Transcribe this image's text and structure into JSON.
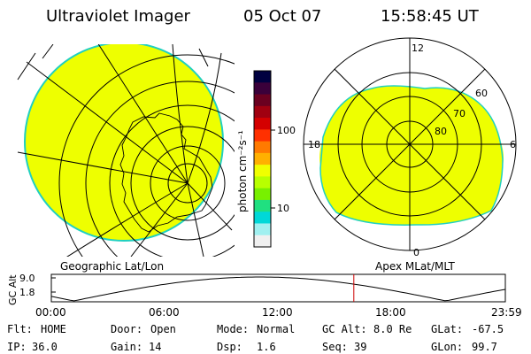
{
  "header": {
    "title": "Ultraviolet Imager",
    "date": "05 Oct 07",
    "time": "15:58:45 UT"
  },
  "colorbar": {
    "unit_label": "photon cm⁻²s⁻¹",
    "ticks": [
      "100",
      "10"
    ],
    "colors": [
      "#000040",
      "#3a003a",
      "#6a0020",
      "#a00010",
      "#d40000",
      "#ff3000",
      "#ff7a00",
      "#ffb000",
      "#f0ff00",
      "#b8ff00",
      "#78f000",
      "#20e080",
      "#00d8d8",
      "#a0f0f0",
      "#f0f0f0"
    ]
  },
  "left_map": {
    "caption": "Geographic Lat/Lon",
    "fill_color": "#eeff00"
  },
  "right_map": {
    "caption": "Apex MLat/MLT",
    "fill_color": "#eeff00",
    "mlt_labels": {
      "top": "12",
      "left": "18",
      "right": "6",
      "bottom": "0"
    },
    "lat_labels": [
      "60",
      "70",
      "80"
    ]
  },
  "altitude_plot": {
    "ylabel": "GC Alt",
    "yticks": [
      "9.0",
      "1.8"
    ],
    "xticks": [
      "00:00",
      "06:00",
      "12:00",
      "18:00",
      "23:59"
    ],
    "marker_time": "15:58:45",
    "marker_color": "#cc0000"
  },
  "info": {
    "row1": [
      {
        "key": "Flt:",
        "value": "HOME"
      },
      {
        "key": "Door:",
        "value": "Open"
      },
      {
        "key": "Mode:",
        "value": "Normal"
      },
      {
        "key": "GC Alt:",
        "value": "8.0 Re"
      },
      {
        "key": "GLat:",
        "value": "-67.5"
      }
    ],
    "row2": [
      {
        "key": "IP:",
        "value": "36.0"
      },
      {
        "key": "Gain:",
        "value": "14"
      },
      {
        "key": "Dsp:",
        "value": "1.6"
      },
      {
        "key": "Seq:",
        "value": "39"
      },
      {
        "key": "GLon:",
        "value": "99.7"
      }
    ]
  }
}
